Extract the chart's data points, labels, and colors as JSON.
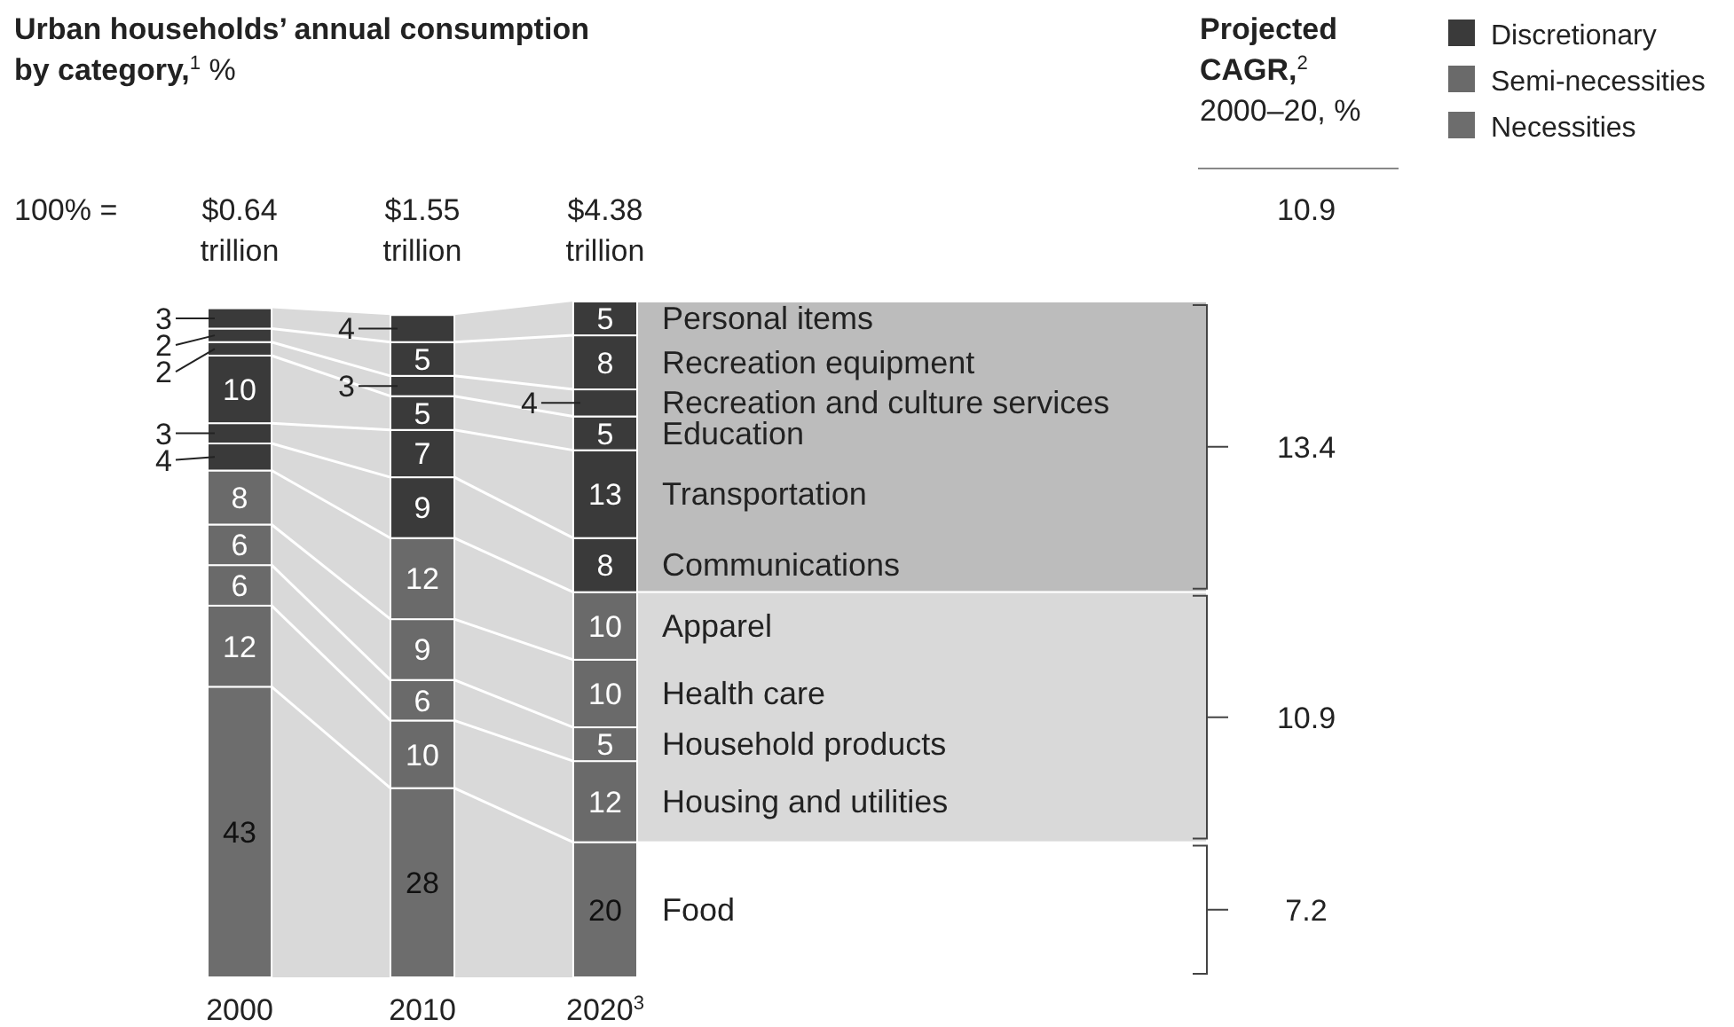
{
  "chart_data": {
    "type": "bar",
    "stacked": true,
    "title": "Urban households’ annual consumption by category,$^{1}$ %",
    "categories": [
      "2000",
      "2010",
      "2020$^{3}$"
    ],
    "series": [
      {
        "name": "Food",
        "color": "#6d6d6d",
        "values": [
          43,
          28,
          20
        ]
      },
      {
        "name": "Housing and utilities",
        "color": "#6a6a6a",
        "values": [
          12,
          10,
          12
        ]
      },
      {
        "name": "Household products",
        "color": "#6a6a6a",
        "values": [
          6,
          6,
          5
        ]
      },
      {
        "name": "Health care",
        "color": "#6a6a6a",
        "values": [
          6,
          9,
          10
        ]
      },
      {
        "name": "Apparel",
        "color": "#6a6a6a",
        "values": [
          8,
          12,
          10
        ]
      },
      {
        "name": "Communications",
        "color": "#3a3a3a",
        "values": [
          4,
          9,
          8
        ]
      },
      {
        "name": "Transportation",
        "color": "#3a3a3a",
        "values": [
          3,
          7,
          13
        ]
      },
      {
        "name": "Education",
        "color": "#3a3a3a",
        "values": [
          10,
          5,
          5
        ]
      },
      {
        "name": "Recreation and culture services",
        "color": "#3a3a3a",
        "values": [
          2,
          3,
          4
        ]
      },
      {
        "name": "Recreation equipment",
        "color": "#3a3a3a",
        "values": [
          2,
          5,
          8
        ]
      },
      {
        "name": "Personal items",
        "color": "#3a3a3a",
        "values": [
          3,
          4,
          5
        ]
      }
    ],
    "data_labels": true,
    "legend": "top right",
    "annotations": [
      "Projected CAGR,$^{2}$",
      "2000–20, %",
      "100% =",
      "10.9",
      "13.4",
      "10.9",
      "7.2",
      "Discretionary",
      "Semi-necessities",
      "Necessities",
      "$0.64 trillion",
      "$1.55 trillion",
      "$4.38 trillion"
    ]
  }
}
